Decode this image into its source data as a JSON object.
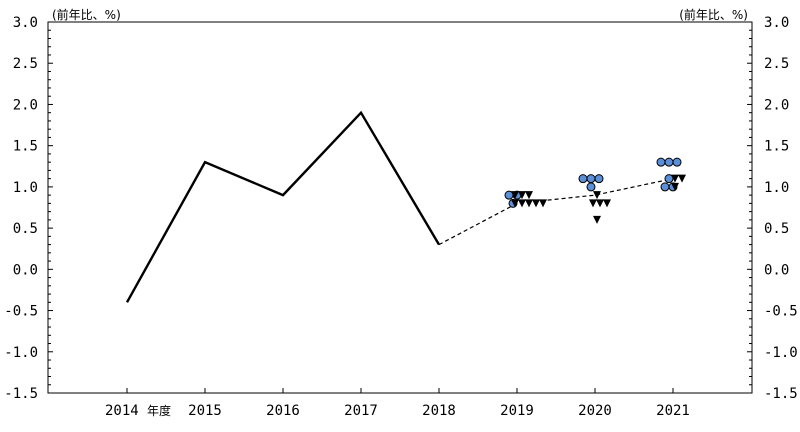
{
  "chart_data": {
    "type": "line",
    "ylim": [
      -1.5,
      3.0
    ],
    "y_ticks": [
      "3.0",
      "2.5",
      "2.0",
      "1.5",
      "1.0",
      "0.5",
      "0.0",
      "-0.5",
      "-1.0",
      "-1.5"
    ],
    "y_tick_values": [
      3.0,
      2.5,
      2.0,
      1.5,
      1.0,
      0.5,
      0.0,
      -0.5,
      -1.0,
      -1.5
    ],
    "y_unit_left": "(前年比、%)",
    "y_unit_right": "(前年比、%)",
    "x_categories": [
      "2014",
      "2015",
      "2016",
      "2017",
      "2018",
      "2019",
      "2020",
      "2021"
    ],
    "x_first_suffix": "年度",
    "series": [
      {
        "style": "solid",
        "x": [
          "2014",
          "2015",
          "2016",
          "2017",
          "2018"
        ],
        "values": [
          -0.4,
          1.3,
          0.9,
          1.9,
          0.3
        ]
      },
      {
        "style": "dashed",
        "x": [
          "2018",
          "2019",
          "2020",
          "2021"
        ],
        "values": [
          0.3,
          0.8,
          0.9,
          1.1
        ]
      }
    ],
    "circle_markers": {
      "color": "#5b8fd8",
      "points": [
        {
          "x": "2019",
          "values": [
            0.8,
            0.9,
            0.9
          ]
        },
        {
          "x": "2020",
          "values": [
            1.1,
            1.1,
            1.1,
            1.0
          ]
        },
        {
          "x": "2021",
          "values": [
            1.3,
            1.3,
            1.3,
            1.1,
            1.0,
            1.0
          ]
        }
      ]
    },
    "triangle_markers": {
      "color": "#000000",
      "points": [
        {
          "x": "2019",
          "values": [
            0.9,
            0.9,
            0.9,
            0.8,
            0.8,
            0.8,
            0.8,
            0.8
          ]
        },
        {
          "x": "2020",
          "values": [
            0.9,
            0.8,
            0.8,
            0.8,
            0.6
          ]
        },
        {
          "x": "2021",
          "values": [
            1.1,
            1.1,
            1.0
          ]
        }
      ]
    }
  }
}
